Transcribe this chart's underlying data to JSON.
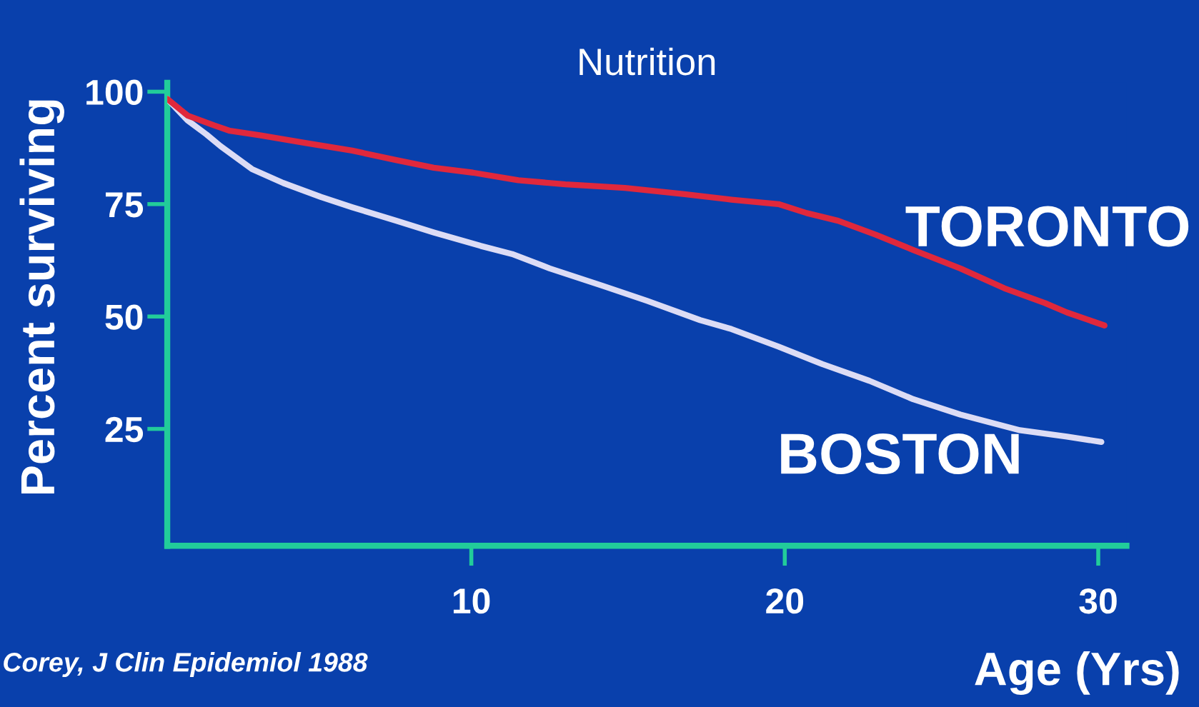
{
  "chart_data": {
    "type": "line",
    "title": "Nutrition",
    "xlabel": "Age (Yrs)",
    "ylabel": "Percent surviving",
    "annotations": [
      "Corey, J Clin Epidemiol 1988"
    ],
    "xlim": [
      0.3,
      30.9
    ],
    "ylim": [
      -1,
      102
    ],
    "xticks": [
      10,
      20,
      30
    ],
    "yticks": [
      25,
      50,
      75,
      100
    ],
    "grid": false,
    "series": [
      {
        "name": "TORONTO",
        "color": "#e0283c",
        "x": [
          0.3,
          0.95,
          1.8,
          2.3,
          3.25,
          4.7,
          6.2,
          7.6,
          8.8,
          10.05,
          11.5,
          13,
          14.9,
          16.8,
          18.3,
          19.8,
          20.7,
          21.7,
          22.9,
          24.1,
          25.6,
          27,
          28.3,
          29,
          30.2
        ],
        "values": [
          98.4,
          94.7,
          92.5,
          91.3,
          90.3,
          88.6,
          86.9,
          84.8,
          83.1,
          82,
          80.3,
          79.4,
          78.6,
          77.2,
          76,
          75,
          73,
          71.3,
          68.2,
          64.8,
          60.7,
          56.3,
          53,
          50.9,
          48
        ]
      },
      {
        "name": "BOSTON",
        "color": "#dcdcf5",
        "x": [
          0.3,
          0.95,
          1.55,
          2.0,
          3.0,
          4.0,
          5.2,
          6.2,
          7.6,
          8.8,
          10.3,
          11.3,
          12.5,
          14.2,
          15.6,
          17.3,
          18.3,
          19.8,
          21.2,
          22.7,
          24.1,
          25.6,
          27.5,
          29,
          30.1
        ],
        "values": [
          98.4,
          93.6,
          90.5,
          87.9,
          82.8,
          79.7,
          76.6,
          74.3,
          71.3,
          68.7,
          65.7,
          63.9,
          60.7,
          56.8,
          53.5,
          49.2,
          47.2,
          43.3,
          39.4,
          35.7,
          31.6,
          28.2,
          24.7,
          23.3,
          22.1
        ]
      }
    ]
  }
}
